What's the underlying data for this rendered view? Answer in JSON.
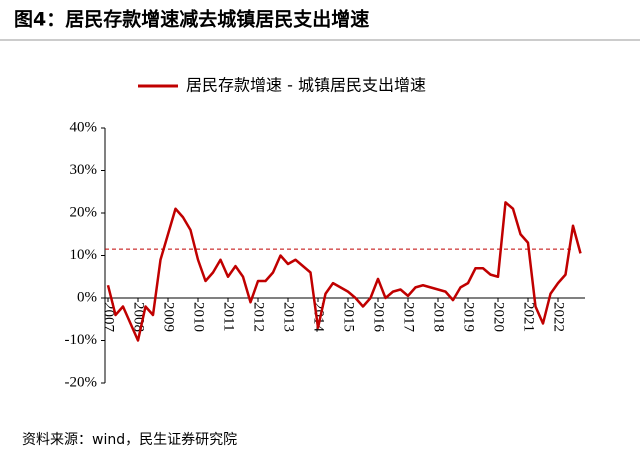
{
  "chart_data": {
    "type": "line",
    "title": "图4：居民存款增速减去城镇居民支出增速",
    "source": "资料来源：wind，民生证券研究院",
    "x": [
      2007,
      2007.25,
      2007.5,
      2007.75,
      2008,
      2008.25,
      2008.5,
      2008.75,
      2009,
      2009.25,
      2009.5,
      2009.75,
      2010,
      2010.25,
      2010.5,
      2010.75,
      2011,
      2011.25,
      2011.5,
      2011.75,
      2012,
      2012.25,
      2012.5,
      2012.75,
      2013,
      2013.25,
      2013.5,
      2013.75,
      2014,
      2014.25,
      2014.5,
      2014.75,
      2015,
      2015.25,
      2015.5,
      2015.75,
      2016,
      2016.25,
      2016.5,
      2016.75,
      2017,
      2017.25,
      2017.5,
      2017.75,
      2018,
      2018.25,
      2018.5,
      2018.75,
      2019,
      2019.25,
      2019.5,
      2019.75,
      2020,
      2020.25,
      2020.5,
      2020.75,
      2021,
      2021.25,
      2021.5,
      2021.75,
      2022,
      2022.25,
      2022.5,
      2022.75
    ],
    "series": [
      {
        "name": "居民存款增速 - 城镇居民支出增速",
        "color": "#c00000",
        "values": [
          3,
          -4,
          -2,
          -6,
          -10,
          -2,
          -4,
          9,
          15,
          21,
          19,
          16,
          9,
          4,
          6,
          9,
          5,
          7.5,
          5,
          -1,
          4,
          4,
          6,
          10,
          8,
          9,
          7.5,
          6,
          -7,
          1,
          3.5,
          2.5,
          1.5,
          0,
          -2,
          0,
          4.5,
          0,
          1.5,
          2,
          0.5,
          2.5,
          3,
          2.5,
          2,
          1.5,
          -0.5,
          2.5,
          3.5,
          7,
          7,
          5.5,
          5,
          22.5,
          21,
          15,
          13,
          -2,
          -6,
          1,
          3.5,
          5.5,
          17,
          10.5
        ]
      }
    ],
    "reference_line": 11.5,
    "xlim": [
      2006.9,
      2022.9
    ],
    "xticks": [
      2007,
      2008,
      2009,
      2010,
      2011,
      2012,
      2013,
      2014,
      2015,
      2016,
      2017,
      2018,
      2019,
      2020,
      2021,
      2022
    ],
    "ylim": [
      -20,
      40
    ],
    "yticks": [
      {
        "value": -20,
        "label": "-20%"
      },
      {
        "value": -10,
        "label": "-10%"
      },
      {
        "value": 0,
        "label": "0%"
      },
      {
        "value": 10,
        "label": "10%"
      },
      {
        "value": 20,
        "label": "20%"
      },
      {
        "value": 30,
        "label": "30%"
      },
      {
        "value": 40,
        "label": "40%"
      }
    ]
  }
}
